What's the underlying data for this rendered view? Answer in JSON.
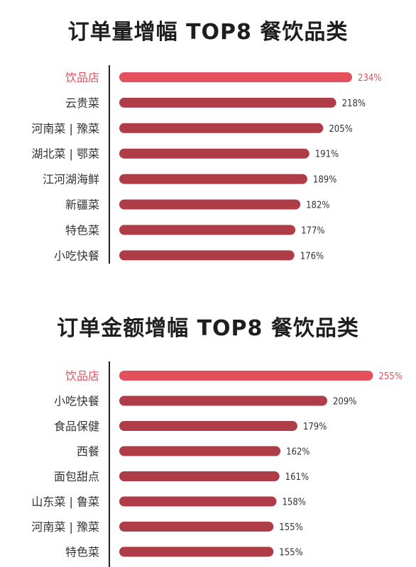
{
  "colors": {
    "highlight_bar": "#e2505c",
    "normal_bar": "#ae3d48",
    "highlight_text": "#e05060",
    "normal_text": "#333333"
  },
  "chart_data": [
    {
      "type": "bar",
      "orientation": "horizontal",
      "title": "订单量增幅 TOP8 餐饮品类",
      "categories": [
        "饮品店",
        "云贵菜",
        "河南菜 | 豫菜",
        "湖北菜 | 鄂菜",
        "江河湖海鲜",
        "新疆菜",
        "特色菜",
        "小吃快餐"
      ],
      "values": [
        234,
        218,
        205,
        191,
        189,
        182,
        177,
        176
      ],
      "value_labels": [
        "234%",
        "218%",
        "205%",
        "191%",
        "189%",
        "182%",
        "177%",
        "176%"
      ],
      "highlight_index": 0,
      "unit": "%",
      "xlim": [
        0,
        260
      ]
    },
    {
      "type": "bar",
      "orientation": "horizontal",
      "title": "订单金额增幅 TOP8 餐饮品类",
      "categories": [
        "饮品店",
        "小吃快餐",
        "食品保健",
        "西餐",
        "面包甜点",
        "山东菜 | 鲁菜",
        "河南菜 | 豫菜",
        "特色菜"
      ],
      "values": [
        255,
        209,
        179,
        162,
        161,
        158,
        155,
        155
      ],
      "value_labels": [
        "255%",
        "209%",
        "179%",
        "162%",
        "161%",
        "158%",
        "155%",
        "155%"
      ],
      "highlight_index": 0,
      "unit": "%",
      "xlim": [
        0,
        260
      ]
    }
  ]
}
